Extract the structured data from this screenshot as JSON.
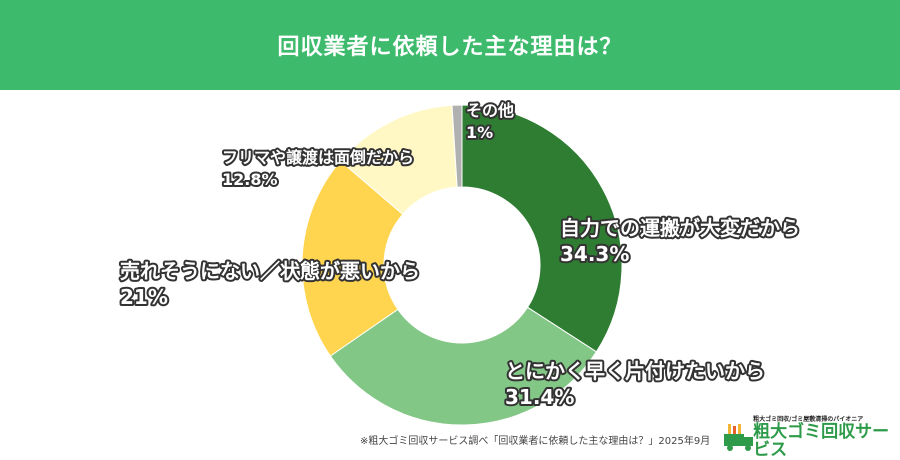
{
  "title": "回収業者に依頼した主な理由は？",
  "chart_data": {
    "type": "pie",
    "donut": true,
    "title": "回収業者に依頼した主な理由は？",
    "slices": [
      {
        "label": "自力での運搬が大変だから",
        "value": 34.3,
        "display": "34.3%",
        "color": "#2e7d32"
      },
      {
        "label": "とにかく早く片付けたいから",
        "value": 31.4,
        "display": "31.4%",
        "color": "#82c785"
      },
      {
        "label": "売れそうにない／状態が悪いから",
        "value": 21,
        "display": "21%",
        "color": "#ffd54f"
      },
      {
        "label": "フリマや譲渡は面倒だから",
        "value": 12.8,
        "display": "12.8%",
        "color": "#fff8c5"
      },
      {
        "label": "その他",
        "value": 1,
        "display": "1%",
        "color": "#b0b0b0"
      }
    ]
  },
  "source_note": "※粗大ゴミ回収サービス調べ「回収業者に依頼した主な理由は？」2025年9月",
  "logo": {
    "tagline": "粗大ゴミ回収/ゴミ屋敷清掃のパイオニア",
    "name": "粗大ゴミ回収サービス"
  }
}
